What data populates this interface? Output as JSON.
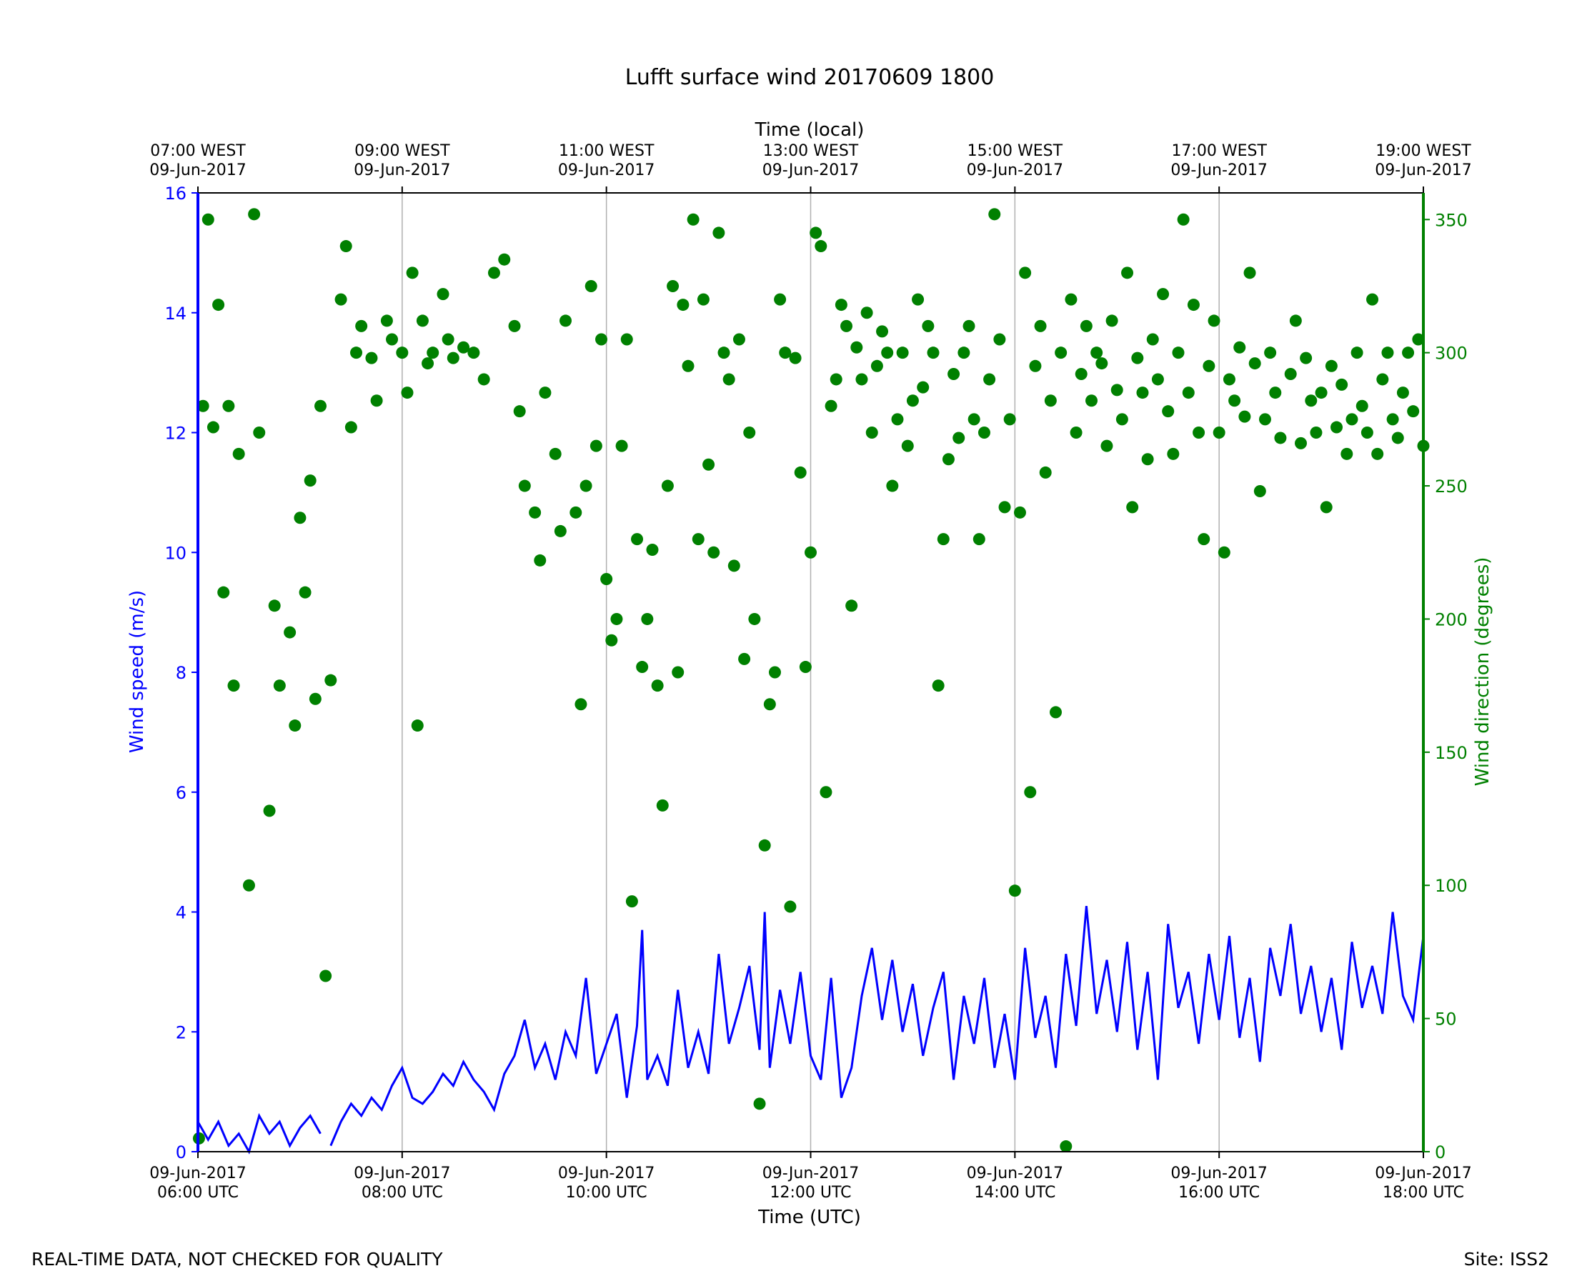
{
  "chart_data": {
    "type": "line+scatter",
    "title": "Lufft surface wind 20170609 1800",
    "xlabel_bottom": "Time (UTC)",
    "xlabel_top": "Time (local)",
    "ylabel_left": "Wind speed (m/s)",
    "ylabel_right": "Wind direction (degrees)",
    "xlim_hours": [
      6,
      18
    ],
    "ylim_left": [
      0,
      16
    ],
    "ylim_right": [
      0,
      360
    ],
    "colors": {
      "speed": "#0000ff",
      "direction": "#008000",
      "axis": "#000000",
      "grid": "#b0b0b0"
    },
    "x_ticks_bottom": [
      {
        "h": 6,
        "line1": "09-Jun-2017",
        "line2": "06:00 UTC"
      },
      {
        "h": 8,
        "line1": "09-Jun-2017",
        "line2": "08:00 UTC"
      },
      {
        "h": 10,
        "line1": "09-Jun-2017",
        "line2": "10:00 UTC"
      },
      {
        "h": 12,
        "line1": "09-Jun-2017",
        "line2": "12:00 UTC"
      },
      {
        "h": 14,
        "line1": "09-Jun-2017",
        "line2": "14:00 UTC"
      },
      {
        "h": 16,
        "line1": "09-Jun-2017",
        "line2": "16:00 UTC"
      },
      {
        "h": 18,
        "line1": "09-Jun-2017",
        "line2": "18:00 UTC"
      }
    ],
    "x_ticks_top": [
      {
        "h": 6,
        "line1": "07:00 WEST",
        "line2": "09-Jun-2017"
      },
      {
        "h": 8,
        "line1": "09:00 WEST",
        "line2": "09-Jun-2017"
      },
      {
        "h": 10,
        "line1": "11:00 WEST",
        "line2": "09-Jun-2017"
      },
      {
        "h": 12,
        "line1": "13:00 WEST",
        "line2": "09-Jun-2017"
      },
      {
        "h": 14,
        "line1": "15:00 WEST",
        "line2": "09-Jun-2017"
      },
      {
        "h": 16,
        "line1": "17:00 WEST",
        "line2": "09-Jun-2017"
      },
      {
        "h": 18,
        "line1": "19:00 WEST",
        "line2": "09-Jun-2017"
      }
    ],
    "y_ticks_left": [
      "0",
      "2",
      "4",
      "6",
      "8",
      "10",
      "12",
      "14",
      "16"
    ],
    "y_ticks_right": [
      "0",
      "50",
      "100",
      "150",
      "200",
      "250",
      "300",
      "350"
    ],
    "speed_series": [
      [
        6.0,
        0.5
      ],
      [
        6.1,
        0.2
      ],
      [
        6.2,
        0.5
      ],
      [
        6.3,
        0.1
      ],
      [
        6.4,
        0.3
      ],
      [
        6.5,
        0.0
      ],
      [
        6.6,
        0.6
      ],
      [
        6.7,
        0.3
      ],
      [
        6.8,
        0.5
      ],
      [
        6.9,
        0.1
      ],
      [
        7.0,
        0.4
      ],
      [
        7.1,
        0.6
      ],
      [
        7.2,
        0.3
      ],
      [
        7.25,
        null
      ],
      [
        7.3,
        0.1
      ],
      [
        7.4,
        0.5
      ],
      [
        7.5,
        0.8
      ],
      [
        7.6,
        0.6
      ],
      [
        7.7,
        0.9
      ],
      [
        7.8,
        0.7
      ],
      [
        7.9,
        1.1
      ],
      [
        8.0,
        1.4
      ],
      [
        8.1,
        0.9
      ],
      [
        8.2,
        0.8
      ],
      [
        8.3,
        1.0
      ],
      [
        8.4,
        1.3
      ],
      [
        8.5,
        1.1
      ],
      [
        8.6,
        1.5
      ],
      [
        8.7,
        1.2
      ],
      [
        8.8,
        1.0
      ],
      [
        8.9,
        0.7
      ],
      [
        9.0,
        1.3
      ],
      [
        9.1,
        1.6
      ],
      [
        9.2,
        2.2
      ],
      [
        9.3,
        1.4
      ],
      [
        9.4,
        1.8
      ],
      [
        9.5,
        1.2
      ],
      [
        9.6,
        2.0
      ],
      [
        9.7,
        1.6
      ],
      [
        9.8,
        2.9
      ],
      [
        9.9,
        1.3
      ],
      [
        10.0,
        1.8
      ],
      [
        10.1,
        2.3
      ],
      [
        10.2,
        0.9
      ],
      [
        10.3,
        2.1
      ],
      [
        10.35,
        3.7
      ],
      [
        10.4,
        1.2
      ],
      [
        10.5,
        1.6
      ],
      [
        10.6,
        1.1
      ],
      [
        10.7,
        2.7
      ],
      [
        10.8,
        1.4
      ],
      [
        10.9,
        2.0
      ],
      [
        11.0,
        1.3
      ],
      [
        11.1,
        3.3
      ],
      [
        11.2,
        1.8
      ],
      [
        11.3,
        2.4
      ],
      [
        11.4,
        3.1
      ],
      [
        11.5,
        1.7
      ],
      [
        11.55,
        4.0
      ],
      [
        11.6,
        1.4
      ],
      [
        11.7,
        2.7
      ],
      [
        11.8,
        1.8
      ],
      [
        11.9,
        3.0
      ],
      [
        12.0,
        1.6
      ],
      [
        12.1,
        1.2
      ],
      [
        12.2,
        2.9
      ],
      [
        12.3,
        0.9
      ],
      [
        12.4,
        1.4
      ],
      [
        12.5,
        2.6
      ],
      [
        12.6,
        3.4
      ],
      [
        12.7,
        2.2
      ],
      [
        12.8,
        3.2
      ],
      [
        12.9,
        2.0
      ],
      [
        13.0,
        2.8
      ],
      [
        13.1,
        1.6
      ],
      [
        13.2,
        2.4
      ],
      [
        13.3,
        3.0
      ],
      [
        13.4,
        1.2
      ],
      [
        13.5,
        2.6
      ],
      [
        13.6,
        1.8
      ],
      [
        13.7,
        2.9
      ],
      [
        13.8,
        1.4
      ],
      [
        13.9,
        2.3
      ],
      [
        14.0,
        1.2
      ],
      [
        14.1,
        3.4
      ],
      [
        14.2,
        1.9
      ],
      [
        14.3,
        2.6
      ],
      [
        14.4,
        1.4
      ],
      [
        14.5,
        3.3
      ],
      [
        14.6,
        2.1
      ],
      [
        14.7,
        4.1
      ],
      [
        14.8,
        2.3
      ],
      [
        14.9,
        3.2
      ],
      [
        15.0,
        2.0
      ],
      [
        15.1,
        3.5
      ],
      [
        15.2,
        1.7
      ],
      [
        15.3,
        3.0
      ],
      [
        15.4,
        1.2
      ],
      [
        15.5,
        3.8
      ],
      [
        15.6,
        2.4
      ],
      [
        15.7,
        3.0
      ],
      [
        15.8,
        1.8
      ],
      [
        15.9,
        3.3
      ],
      [
        16.0,
        2.2
      ],
      [
        16.1,
        3.6
      ],
      [
        16.2,
        1.9
      ],
      [
        16.3,
        2.9
      ],
      [
        16.4,
        1.5
      ],
      [
        16.5,
        3.4
      ],
      [
        16.6,
        2.6
      ],
      [
        16.7,
        3.8
      ],
      [
        16.8,
        2.3
      ],
      [
        16.9,
        3.1
      ],
      [
        17.0,
        2.0
      ],
      [
        17.1,
        2.9
      ],
      [
        17.2,
        1.7
      ],
      [
        17.3,
        3.5
      ],
      [
        17.4,
        2.4
      ],
      [
        17.5,
        3.1
      ],
      [
        17.6,
        2.3
      ],
      [
        17.7,
        4.0
      ],
      [
        17.8,
        2.6
      ],
      [
        17.9,
        2.2
      ],
      [
        18.0,
        3.6
      ]
    ],
    "direction_points": [
      [
        6.01,
        5
      ],
      [
        6.05,
        280
      ],
      [
        6.1,
        350
      ],
      [
        6.15,
        272
      ],
      [
        6.2,
        318
      ],
      [
        6.25,
        210
      ],
      [
        6.3,
        280
      ],
      [
        6.35,
        175
      ],
      [
        6.4,
        262
      ],
      [
        6.5,
        100
      ],
      [
        6.55,
        352
      ],
      [
        6.6,
        270
      ],
      [
        6.7,
        128
      ],
      [
        6.75,
        205
      ],
      [
        6.8,
        175
      ],
      [
        6.9,
        195
      ],
      [
        6.95,
        160
      ],
      [
        7.0,
        238
      ],
      [
        7.05,
        210
      ],
      [
        7.1,
        252
      ],
      [
        7.15,
        170
      ],
      [
        7.2,
        280
      ],
      [
        7.25,
        66
      ],
      [
        7.3,
        177
      ],
      [
        7.4,
        320
      ],
      [
        7.45,
        340
      ],
      [
        7.5,
        272
      ],
      [
        7.55,
        300
      ],
      [
        7.6,
        310
      ],
      [
        7.7,
        298
      ],
      [
        7.75,
        282
      ],
      [
        7.85,
        312
      ],
      [
        7.9,
        305
      ],
      [
        8.0,
        300
      ],
      [
        8.05,
        285
      ],
      [
        8.1,
        330
      ],
      [
        8.15,
        160
      ],
      [
        8.2,
        312
      ],
      [
        8.25,
        296
      ],
      [
        8.3,
        300
      ],
      [
        8.4,
        322
      ],
      [
        8.45,
        305
      ],
      [
        8.5,
        298
      ],
      [
        8.6,
        302
      ],
      [
        8.7,
        300
      ],
      [
        8.8,
        290
      ],
      [
        8.9,
        330
      ],
      [
        9.0,
        335
      ],
      [
        9.1,
        310
      ],
      [
        9.15,
        278
      ],
      [
        9.2,
        250
      ],
      [
        9.3,
        240
      ],
      [
        9.35,
        222
      ],
      [
        9.4,
        285
      ],
      [
        9.5,
        262
      ],
      [
        9.55,
        233
      ],
      [
        9.6,
        312
      ],
      [
        9.7,
        240
      ],
      [
        9.75,
        168
      ],
      [
        9.8,
        250
      ],
      [
        9.85,
        325
      ],
      [
        9.9,
        265
      ],
      [
        9.95,
        305
      ],
      [
        10.0,
        215
      ],
      [
        10.05,
        192
      ],
      [
        10.1,
        200
      ],
      [
        10.15,
        265
      ],
      [
        10.2,
        305
      ],
      [
        10.25,
        94
      ],
      [
        10.3,
        230
      ],
      [
        10.35,
        182
      ],
      [
        10.4,
        200
      ],
      [
        10.45,
        226
      ],
      [
        10.5,
        175
      ],
      [
        10.55,
        130
      ],
      [
        10.6,
        250
      ],
      [
        10.65,
        325
      ],
      [
        10.7,
        180
      ],
      [
        10.75,
        318
      ],
      [
        10.8,
        295
      ],
      [
        10.85,
        350
      ],
      [
        10.9,
        230
      ],
      [
        10.95,
        320
      ],
      [
        11.0,
        258
      ],
      [
        11.05,
        225
      ],
      [
        11.1,
        345
      ],
      [
        11.15,
        300
      ],
      [
        11.2,
        290
      ],
      [
        11.25,
        220
      ],
      [
        11.3,
        305
      ],
      [
        11.35,
        185
      ],
      [
        11.4,
        270
      ],
      [
        11.45,
        200
      ],
      [
        11.5,
        18
      ],
      [
        11.55,
        115
      ],
      [
        11.6,
        168
      ],
      [
        11.65,
        180
      ],
      [
        11.7,
        320
      ],
      [
        11.75,
        300
      ],
      [
        11.8,
        92
      ],
      [
        11.85,
        298
      ],
      [
        11.9,
        255
      ],
      [
        11.95,
        182
      ],
      [
        12.0,
        225
      ],
      [
        12.05,
        345
      ],
      [
        12.1,
        340
      ],
      [
        12.15,
        135
      ],
      [
        12.2,
        280
      ],
      [
        12.25,
        290
      ],
      [
        12.3,
        318
      ],
      [
        12.35,
        310
      ],
      [
        12.4,
        205
      ],
      [
        12.45,
        302
      ],
      [
        12.5,
        290
      ],
      [
        12.55,
        315
      ],
      [
        12.6,
        270
      ],
      [
        12.65,
        295
      ],
      [
        12.7,
        308
      ],
      [
        12.75,
        300
      ],
      [
        12.8,
        250
      ],
      [
        12.85,
        275
      ],
      [
        12.9,
        300
      ],
      [
        12.95,
        265
      ],
      [
        13.0,
        282
      ],
      [
        13.05,
        320
      ],
      [
        13.1,
        287
      ],
      [
        13.15,
        310
      ],
      [
        13.2,
        300
      ],
      [
        13.25,
        175
      ],
      [
        13.3,
        230
      ],
      [
        13.35,
        260
      ],
      [
        13.4,
        292
      ],
      [
        13.45,
        268
      ],
      [
        13.5,
        300
      ],
      [
        13.55,
        310
      ],
      [
        13.6,
        275
      ],
      [
        13.65,
        230
      ],
      [
        13.7,
        270
      ],
      [
        13.75,
        290
      ],
      [
        13.8,
        352
      ],
      [
        13.85,
        305
      ],
      [
        13.9,
        242
      ],
      [
        13.95,
        275
      ],
      [
        14.0,
        98
      ],
      [
        14.05,
        240
      ],
      [
        14.1,
        330
      ],
      [
        14.15,
        135
      ],
      [
        14.2,
        295
      ],
      [
        14.25,
        310
      ],
      [
        14.3,
        255
      ],
      [
        14.35,
        282
      ],
      [
        14.4,
        165
      ],
      [
        14.45,
        300
      ],
      [
        14.5,
        2
      ],
      [
        14.55,
        320
      ],
      [
        14.6,
        270
      ],
      [
        14.65,
        292
      ],
      [
        14.7,
        310
      ],
      [
        14.75,
        282
      ],
      [
        14.8,
        300
      ],
      [
        14.85,
        296
      ],
      [
        14.9,
        265
      ],
      [
        14.95,
        312
      ],
      [
        15.0,
        286
      ],
      [
        15.05,
        275
      ],
      [
        15.1,
        330
      ],
      [
        15.15,
        242
      ],
      [
        15.2,
        298
      ],
      [
        15.25,
        285
      ],
      [
        15.3,
        260
      ],
      [
        15.35,
        305
      ],
      [
        15.4,
        290
      ],
      [
        15.45,
        322
      ],
      [
        15.5,
        278
      ],
      [
        15.55,
        262
      ],
      [
        15.6,
        300
      ],
      [
        15.65,
        350
      ],
      [
        15.7,
        285
      ],
      [
        15.75,
        318
      ],
      [
        15.8,
        270
      ],
      [
        15.85,
        230
      ],
      [
        15.9,
        295
      ],
      [
        15.95,
        312
      ],
      [
        16.0,
        270
      ],
      [
        16.05,
        225
      ],
      [
        16.1,
        290
      ],
      [
        16.15,
        282
      ],
      [
        16.2,
        302
      ],
      [
        16.25,
        276
      ],
      [
        16.3,
        330
      ],
      [
        16.35,
        296
      ],
      [
        16.4,
        248
      ],
      [
        16.45,
        275
      ],
      [
        16.5,
        300
      ],
      [
        16.55,
        285
      ],
      [
        16.6,
        268
      ],
      [
        16.7,
        292
      ],
      [
        16.75,
        312
      ],
      [
        16.8,
        266
      ],
      [
        16.85,
        298
      ],
      [
        16.9,
        282
      ],
      [
        16.95,
        270
      ],
      [
        17.0,
        285
      ],
      [
        17.05,
        242
      ],
      [
        17.1,
        295
      ],
      [
        17.15,
        272
      ],
      [
        17.2,
        288
      ],
      [
        17.25,
        262
      ],
      [
        17.3,
        275
      ],
      [
        17.35,
        300
      ],
      [
        17.4,
        280
      ],
      [
        17.45,
        270
      ],
      [
        17.5,
        320
      ],
      [
        17.55,
        262
      ],
      [
        17.6,
        290
      ],
      [
        17.65,
        300
      ],
      [
        17.7,
        275
      ],
      [
        17.75,
        268
      ],
      [
        17.8,
        285
      ],
      [
        17.85,
        300
      ],
      [
        17.9,
        278
      ],
      [
        17.95,
        305
      ],
      [
        18.0,
        265
      ]
    ]
  },
  "footer": {
    "left_text": "REAL-TIME DATA, NOT CHECKED FOR QUALITY",
    "right_text": "Site: ISS2"
  }
}
